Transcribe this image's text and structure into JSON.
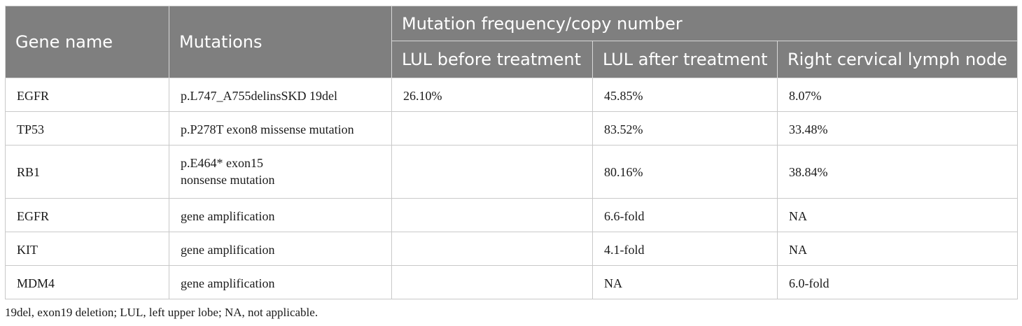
{
  "table": {
    "headers": {
      "gene": "Gene name",
      "mutations": "Mutations",
      "group": "Mutation frequency/copy number",
      "before": "LUL before treatment",
      "after": "LUL after treatment",
      "node": "Right cervical lymph node"
    },
    "rows": [
      {
        "gene": "EGFR",
        "mutation": [
          "p.L747_A755delinsSKD 19del"
        ],
        "before": "26.10%",
        "after": "45.85%",
        "node": "8.07%"
      },
      {
        "gene": "TP53",
        "mutation": [
          "p.P278T exon8 missense mutation"
        ],
        "before": "",
        "after": "83.52%",
        "node": "33.48%"
      },
      {
        "gene": "RB1",
        "mutation": [
          "p.E464* exon15",
          "nonsense mutation"
        ],
        "before": "",
        "after": "80.16%",
        "node": "38.84%"
      },
      {
        "gene": "EGFR",
        "mutation": [
          "gene amplification"
        ],
        "before": "",
        "after": "6.6-fold",
        "node": "NA"
      },
      {
        "gene": "KIT",
        "mutation": [
          "gene amplification"
        ],
        "before": "",
        "after": "4.1-fold",
        "node": "NA"
      },
      {
        "gene": "MDM4",
        "mutation": [
          "gene amplification"
        ],
        "before": "",
        "after": "NA",
        "node": "6.0-fold"
      }
    ]
  },
  "footnote": "19del, exon19 deletion; LUL, left upper lobe; NA, not applicable.",
  "colors": {
    "header_bg": "#7f7f7f",
    "header_text": "#ffffff",
    "border": "#c9c9c9",
    "body_text": "#1a1a1a"
  }
}
